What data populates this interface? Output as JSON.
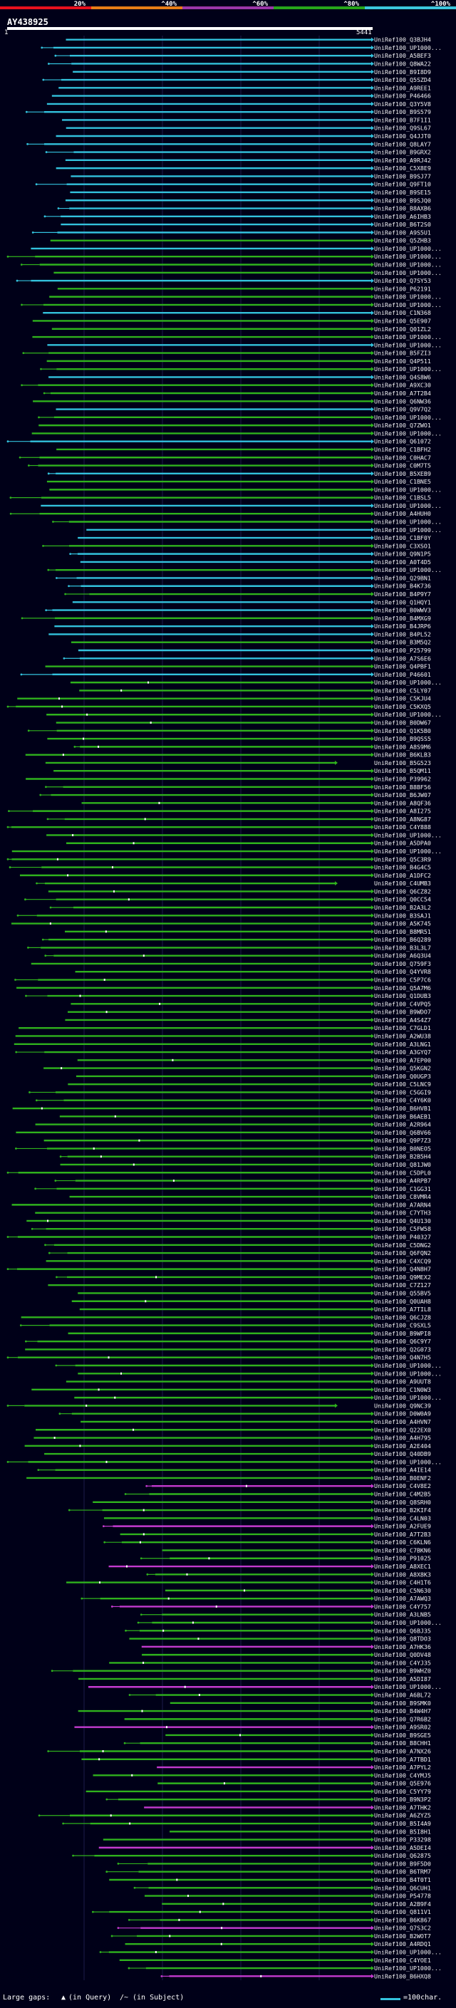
{
  "query": {
    "name": "AY438925",
    "start": "1",
    "end": "5441"
  },
  "scale": {
    "labels": [
      "20%",
      "^40%",
      "^60%",
      "^80%",
      "^100%"
    ],
    "colors": [
      "#e8101e",
      "#e87d17",
      "#9b36a8",
      "#27a51b",
      "#3cc6dc"
    ]
  },
  "colors": {
    "cyan": "#33c2dd",
    "green": "#2fb21d",
    "magenta": "#c43bcf",
    "gap": "#ffffff"
  },
  "hits": [
    "UniRef100_Q3BJH4",
    "UniRef100_UP1000...",
    "UniRef100_A5BEF3",
    "UniRef100_Q8WA22",
    "UniRef100_B9I8D9",
    "UniRef100_Q5SZD4",
    "UniRef100_A9REE1",
    "UniRef100_P46466",
    "UniRef100_Q3Y5V8",
    "UniRef100_B9S579",
    "UniRef100_B7F1I1",
    "UniRef100_Q9SL67",
    "UniRef100_Q4JJT0",
    "UniRef100_Q8LAY7",
    "UniRef100_B9GRX2",
    "UniRef100_A9RJ42",
    "UniRef100_C5X8E9",
    "UniRef100_B9SJ77",
    "UniRef100_Q9FT10",
    "UniRef100_B9SE15",
    "UniRef100_B9SJQ0",
    "UniRef100_B8AXB6",
    "UniRef100_A6IHB3",
    "UniRef100_B6T2S0",
    "UniRef100_A9S5U1",
    "UniRef100_Q5ZHB3",
    "UniRef100_UP1000...",
    "UniRef100_UP1000...",
    "UniRef100_UP1000...",
    "UniRef100_UP1000...",
    "UniRef100_Q7SY53",
    "UniRef100_P62191",
    "UniRef100_UP1000...",
    "UniRef100_UP1000...",
    "UniRef100_C1N368",
    "UniRef100_Q5E907",
    "UniRef100_Q01ZL2",
    "UniRef100_UP1000...",
    "UniRef100_UP1000...",
    "UniRef100_B5FZI3",
    "UniRef100_Q4P511",
    "UniRef100_UP1000...",
    "UniRef100_Q4S8W6",
    "UniRef100_A9XC30",
    "UniRef100_A7T2B4",
    "UniRef100_Q6NW36",
    "UniRef100_Q9V7Q2",
    "UniRef100_UP1000...",
    "UniRef100_Q7ZWO1",
    "UniRef100_UP1000...",
    "UniRef100_Q61072",
    "UniRef100_C1BFH2",
    "UniRef100_C0HAC7",
    "UniRef100_C0M7T5",
    "UniRef100_B5XEB9",
    "UniRef100_C1BNE5",
    "UniRef100_UP1000...",
    "UniRef100_C1BSL5",
    "UniRef100_UP1000...",
    "UniRef100_A4HUH0",
    "UniRef100_UP1000...",
    "UniRef100_UP1000...",
    "UniRef100_C1BF0Y",
    "UniRef100_C3XSO1",
    "UniRef100_Q9N1P5",
    "UniRef100_A0T4D5",
    "UniRef100_UP1000...",
    "UniRef100_Q29BN1",
    "UniRef100_B4K736",
    "UniRef100_B4P9Y7",
    "UniRef100_Q1HQY1",
    "UniRef100_B0WWV3",
    "UniRef100_B4MXG9",
    "UniRef100_B4JRP6",
    "UniRef100_B4PL52",
    "UniRef100_B3M5Q2",
    "UniRef100_P25799",
    "UniRef100_A7S6E6",
    "UniRef100_Q4PBF1",
    "UniRef100_P46601",
    "UniRef100_UP1000...",
    "UniRef100_C5LY07",
    "UniRef100_C5KJU4",
    "UniRef100_C5KXQ5",
    "UniRef100_UP1000...",
    "UniRef100_B0DW67",
    "UniRef100_Q1K5B0",
    "UniRef100_B9QSS5",
    "UniRef100_A8S9M6",
    "UniRef100_B6KLB3",
    "UniRef100_B5G523",
    "UniRef100_B5QM11",
    "UniRef100_P39962",
    "UniRef100_B8BF56",
    "UniRef100_B6JW07",
    "UniRef100_A8QF36",
    "UniRef100_A8I275",
    "UniRef100_A8NG87",
    "UniRef100_C4Y888",
    "UniRef100_UP1000...",
    "UniRef100_A5DPA0",
    "UniRef100_UP1000...",
    "UniRef100_Q5C3R9",
    "UniRef100_B4G4C5",
    "UniRef100_A1DFC2",
    "UniRef100_C4UMB3",
    "UniRef100_Q6CZ82",
    "UniRef100_Q0CC54",
    "UniRef100_B2A3L2",
    "UniRef100_B3SAJ1",
    "UniRef100_A5K745",
    "UniRef100_B8MR51",
    "UniRef100_B6Q289",
    "UniRef100_B3L3L7",
    "UniRef100_A6Q3U4",
    "UniRef100_Q759F3",
    "UniRef100_Q4YVR8",
    "UniRef100_C5P7C6",
    "UniRef100_Q5A7M6",
    "UniRef100_Q1DUB3",
    "UniRef100_C4VPQ5",
    "UniRef100_B9WDO7",
    "UniRef100_A4S4Z7",
    "UniRef100_C7GLD1",
    "UniRef100_A2WU38",
    "UniRef100_A3LNG1",
    "UniRef100_A3GYQ7",
    "UniRef100_A7EP00",
    "UniRef100_Q5KGN2",
    "UniRef100_Q0UGP3",
    "UniRef100_C5LNC9",
    "UniRef100_C5GGI9",
    "UniRef100_C4Y6K0",
    "UniRef100_B6HVB1",
    "UniRef100_B6AEB1",
    "UniRef100_A2R964",
    "UniRef100_Q6BV66",
    "UniRef100_Q9P7Z3",
    "UniRef100_B0NEO5",
    "UniRef100_B2B5H4",
    "UniRef100_Q81JW0",
    "UniRef100_C5DPL0",
    "UniRef100_A4RPB7",
    "UniRef100_C1GG31",
    "UniRef100_C8VMR4",
    "UniRef100_A7ARN4",
    "UniRef100_C7YTH3",
    "UniRef100_Q4U130",
    "UniRef100_C5FW58",
    "UniRef100_P40327",
    "UniRef100_C5DNG2",
    "UniRef100_Q6FQN2",
    "UniRef100_C4XCQ9",
    "UniRef100_Q4N8H7",
    "UniRef100_Q9MEX2",
    "UniRef100_C7Z127",
    "UniRef100_Q55BV5",
    "UniRef100_Q0UAH8",
    "UniRef100_A7TIL8",
    "UniRef100_Q6CJZ8",
    "UniRef100_C9SXL5",
    "UniRef100_B9WPI8",
    "UniRef100_Q6C9Y7",
    "UniRef100_Q2G073",
    "UniRef100_Q4N7H5",
    "UniRef100_UP1000...",
    "UniRef100_UP1000...",
    "UniRef100_A9UUT8",
    "UniRef100_C1N0W3",
    "UniRef100_UP1000...",
    "UniRef100_Q9NC39",
    "UniRef100_D0W0A9",
    "UniRef100_A4HVN7",
    "UniRef100_Q22EX0",
    "UniRef100_A4H795",
    "UniRef100_A2E404",
    "UniRef100_Q40DB9",
    "UniRef100_UP1000...",
    "UniRef100_A4IE14",
    "UniRef100_B0ENF2",
    "UniRef100_C4V8E2",
    "UniRef100_C4M2B5",
    "UniRef100_Q8SRH0",
    "UniRef100_B2KIF4",
    "UniRef100_C4LN03",
    "UniRef100_A2FUE9",
    "UniRef100_A7T2B3",
    "UniRef100_C6KLN6",
    "UniRef100_C7BKN6",
    "UniRef100_P91025",
    "UniRef100_A8XEC1",
    "UniRef100_A8X8K3",
    "UniRef100_C4H1T6",
    "UniRef100_C5N630",
    "UniRef100_A7AWQ3",
    "UniRef100_C4Y757",
    "UniRef100_A3LNB5",
    "UniRef100_UP1000...",
    "UniRef100_Q6BJ35",
    "UniRef100_Q8TDO3",
    "UniRef100_A7HK36",
    "UniRef100_Q0DV48",
    "UniRef100_C4YJ35",
    "UniRef100_B9WHZ0",
    "UniRef100_A5DI87",
    "UniRef100_UP1000...",
    "UniRef100_A6BL72",
    "UniRef100_B9SMK0",
    "UniRef100_B4W4H7",
    "UniRef100_Q7R6B2",
    "UniRef100_A9SR02",
    "UniRef100_B9SGE5",
    "UniRef100_B8CHH1",
    "UniRef100_A7NX26",
    "UniRef100_A7TBD1",
    "UniRef100_A7PYL2",
    "UniRef100_C4YMJ5",
    "UniRef100_Q5E976",
    "UniRef100_C5YY79",
    "UniRef100_B9N3P2",
    "UniRef100_A7THK2",
    "UniRef100_A6ZYZ5",
    "UniRef100_B5I4A9",
    "UniRef100_B5I8H1",
    "UniRef100_P33298",
    "UniRef100_A5DEI4",
    "UniRef100_Q62875",
    "UniRef100_B9F5D0",
    "UniRef100_B6TRM7",
    "UniRef100_B4T0T1",
    "UniRef100_Q6CUH1",
    "UniRef100_P54778",
    "UniRef100_A2B9F4",
    "UniRef100_Q811V1",
    "UniRef100_B6K867",
    "UniRef100_Q7S3C2",
    "UniRef100_B2WOT7",
    "UniRef100_A4RDQ1",
    "UniRef100_UP1000...",
    "UniRef100_C4YOE1",
    "UniRef100_UP1000...",
    "UniRef100_B6HXQ8"
  ],
  "legend": {
    "large_gaps_label": "Large gaps:",
    "query_gap_label": "(in Query)",
    "subject_gap_label": "(in Subject)",
    "scale_label": "=100char."
  }
}
